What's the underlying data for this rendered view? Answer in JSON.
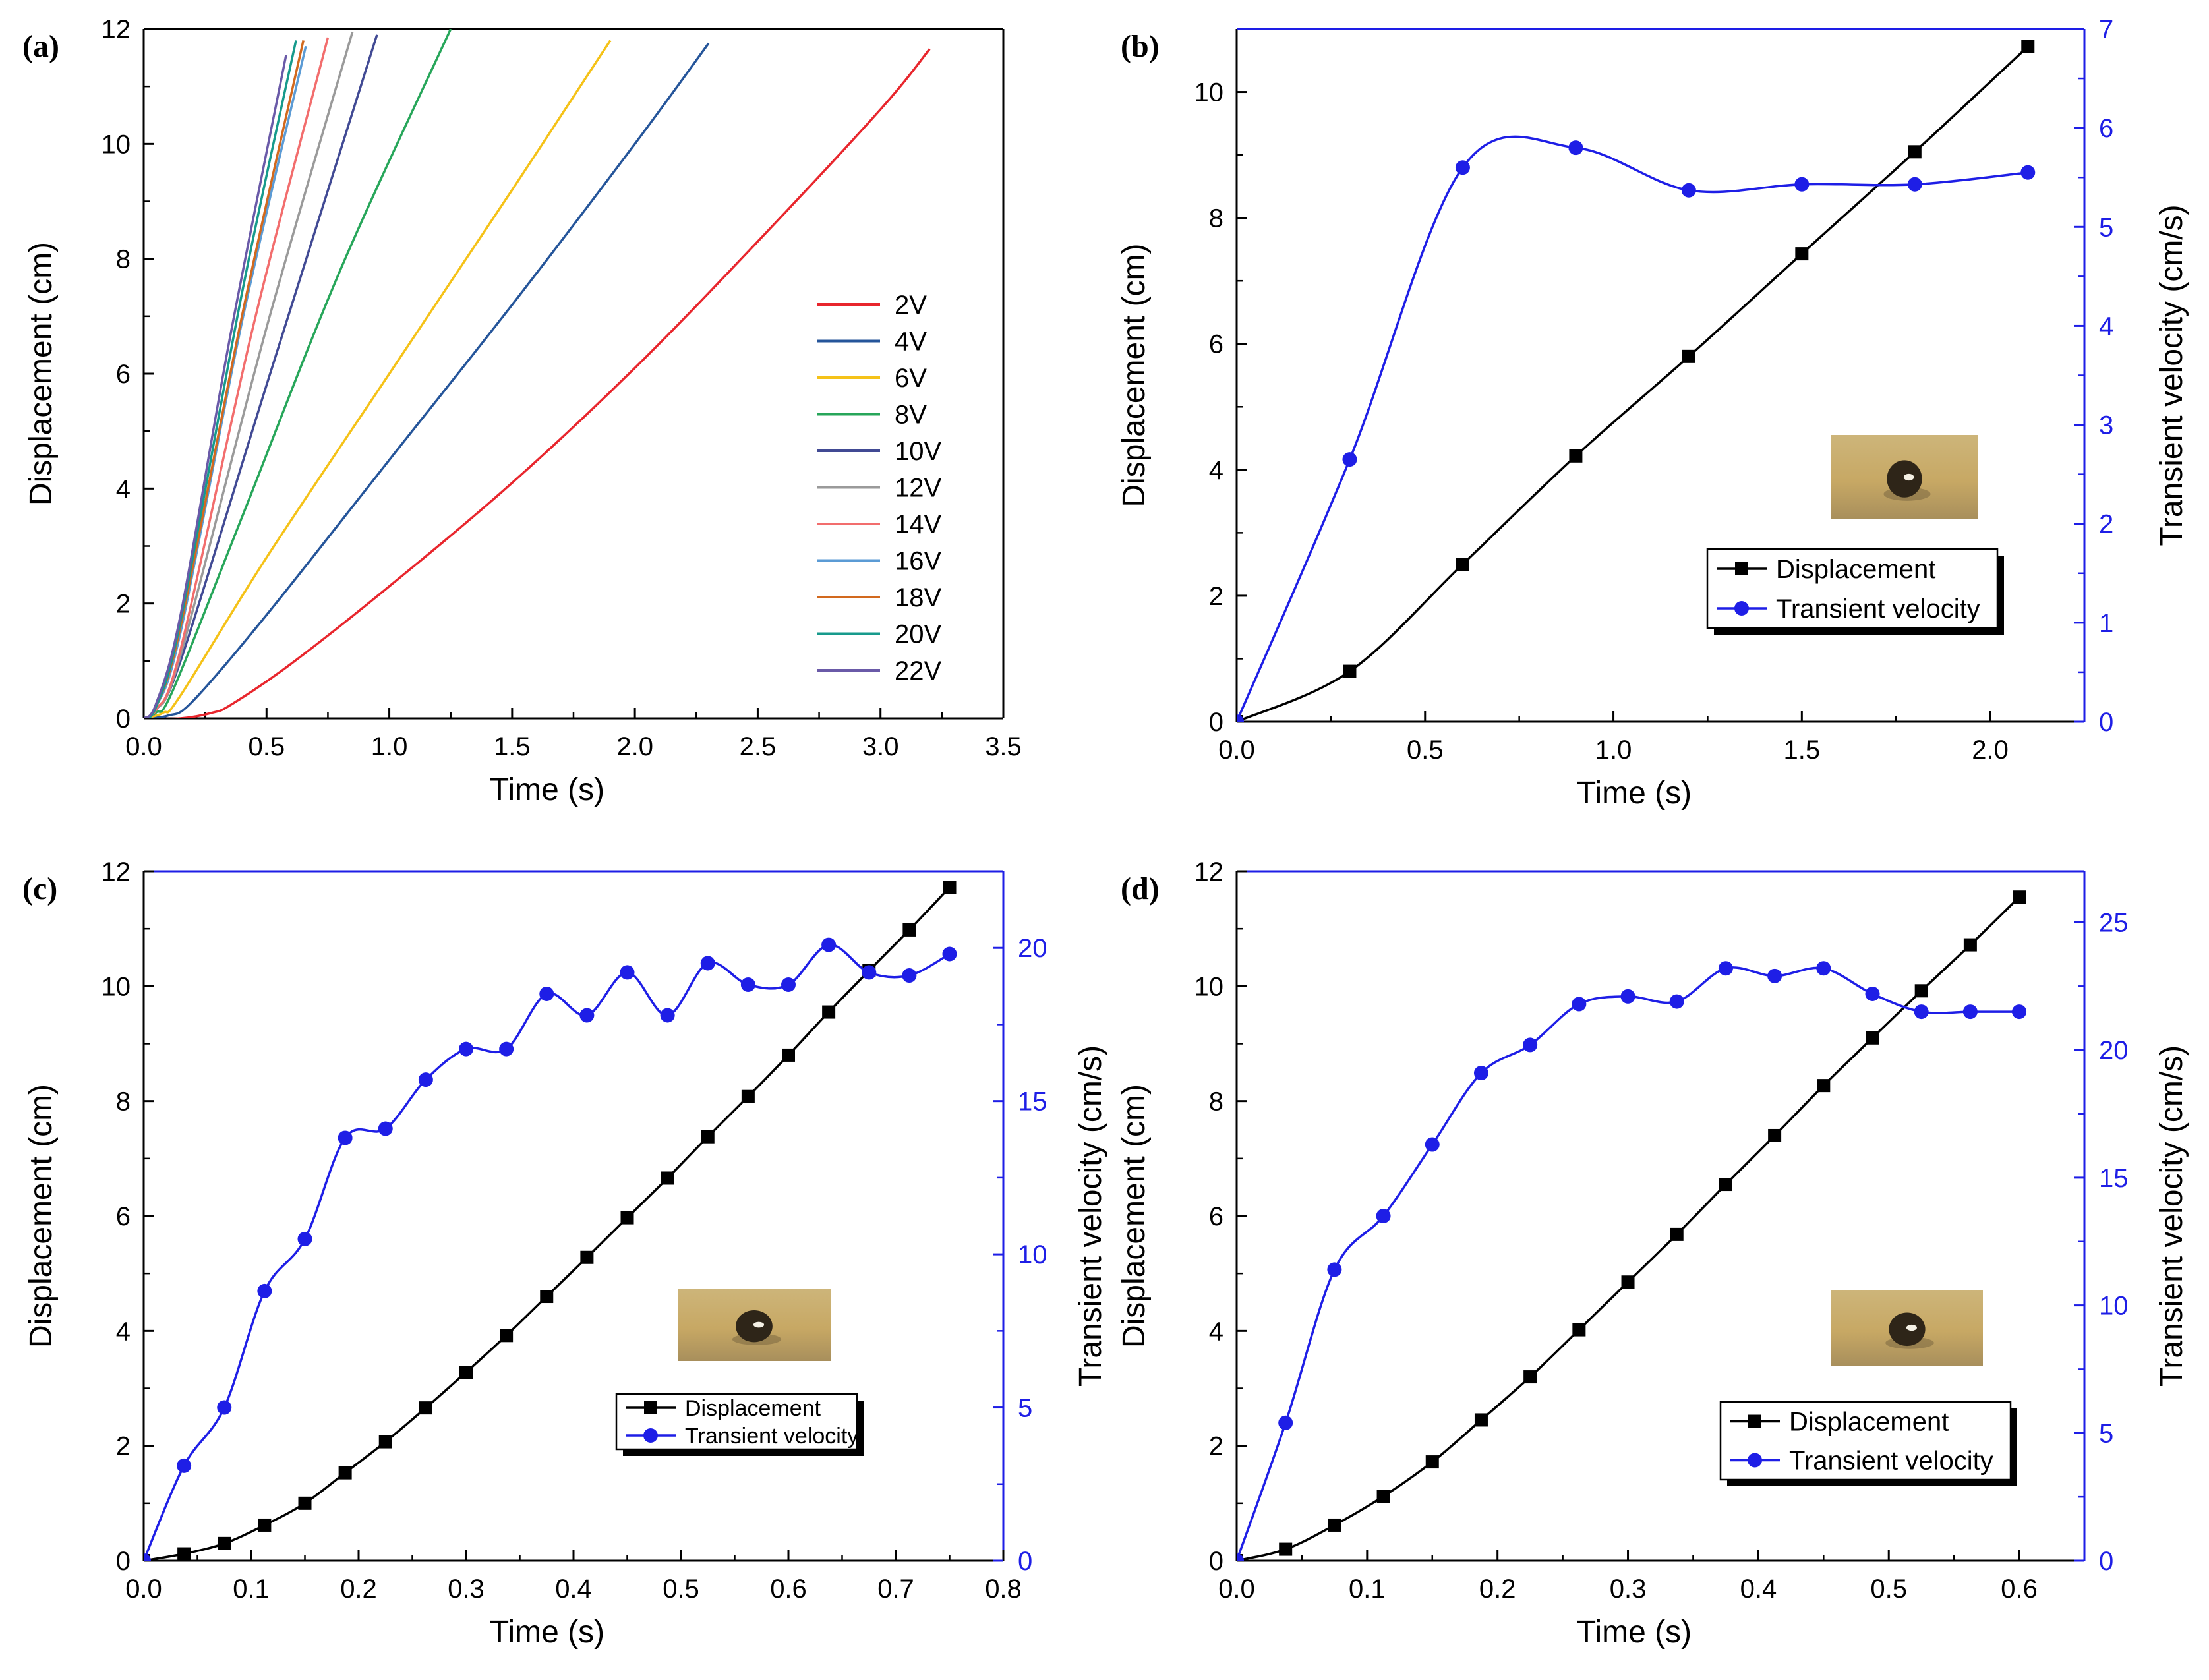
{
  "chart_data": [
    {
      "id": "a",
      "type": "line",
      "panel_label": "(a)",
      "title": "",
      "xlabel": "Time (s)",
      "ylabel": "Displacement (cm)",
      "xlim": [
        0,
        3.5
      ],
      "ylim": [
        0,
        12
      ],
      "xticks": [
        "0.0",
        "0.5",
        "1.0",
        "1.5",
        "2.0",
        "2.5",
        "3.0",
        "3.5"
      ],
      "yticks": [
        "0",
        "2",
        "4",
        "6",
        "8",
        "10",
        "12"
      ],
      "legend_position": "center-right",
      "series": [
        {
          "name": "2V",
          "color": "#e8262d",
          "x": [
            0,
            0.15,
            0.28,
            0.36,
            0.6,
            1.0,
            1.5,
            2.0,
            2.5,
            3.0,
            3.2
          ],
          "y": [
            0,
            0,
            0.1,
            0.25,
            0.95,
            2.3,
            4.1,
            6.1,
            8.3,
            10.6,
            11.65
          ]
        },
        {
          "name": "4V",
          "color": "#25559a",
          "x": [
            0,
            0.1,
            0.2,
            0.5,
            1.0,
            1.5,
            2.0,
            2.3
          ],
          "y": [
            0,
            0.05,
            0.3,
            1.8,
            4.5,
            7.2,
            10.0,
            11.75
          ]
        },
        {
          "name": "6V",
          "color": "#f5c218",
          "x": [
            0,
            0.08,
            0.15,
            0.5,
            1.0,
            1.5,
            1.9
          ],
          "y": [
            0,
            0.1,
            0.4,
            2.8,
            6.0,
            9.2,
            11.8
          ]
        },
        {
          "name": "8V",
          "color": "#27a65a",
          "x": [
            0,
            0.05,
            0.12,
            0.4,
            0.8,
            1.25
          ],
          "y": [
            0,
            0.1,
            0.5,
            3.5,
            7.8,
            12.0
          ]
        },
        {
          "name": "10V",
          "color": "#414a94",
          "x": [
            0,
            0.05,
            0.15,
            0.5,
            0.95
          ],
          "y": [
            0,
            0.15,
            1.0,
            5.8,
            11.9
          ]
        },
        {
          "name": "12V",
          "color": "#9a9a9a",
          "x": [
            0,
            0.05,
            0.15,
            0.5,
            0.85
          ],
          "y": [
            0,
            0.15,
            1.1,
            6.8,
            11.95
          ]
        },
        {
          "name": "14V",
          "color": "#f26d6d",
          "x": [
            0,
            0.05,
            0.15,
            0.45,
            0.75
          ],
          "y": [
            0,
            0.15,
            1.2,
            6.9,
            11.85
          ]
        },
        {
          "name": "16V",
          "color": "#5b9bd5",
          "x": [
            0,
            0.05,
            0.15,
            0.4,
            0.66
          ],
          "y": [
            0,
            0.2,
            1.5,
            6.9,
            11.7
          ]
        },
        {
          "name": "18V",
          "color": "#d2691e",
          "x": [
            0,
            0.05,
            0.15,
            0.4,
            0.65
          ],
          "y": [
            0,
            0.2,
            1.6,
            7.0,
            11.8
          ]
        },
        {
          "name": "20V",
          "color": "#179a8c",
          "x": [
            0,
            0.05,
            0.15,
            0.4,
            0.62
          ],
          "y": [
            0,
            0.2,
            1.7,
            7.4,
            11.8
          ]
        },
        {
          "name": "22V",
          "color": "#6a5aa8",
          "x": [
            0,
            0.05,
            0.15,
            0.35,
            0.58
          ],
          "y": [
            0,
            0.25,
            1.8,
            6.6,
            11.55
          ]
        }
      ]
    },
    {
      "id": "b",
      "type": "line",
      "panel_label": "(b)",
      "title": "",
      "xlabel": "Time (s)",
      "ylabel": "Displacement (cm)",
      "y2label": "Transient velocity (cm/s)",
      "xlim": [
        0,
        2.25
      ],
      "ylim": [
        0,
        11
      ],
      "y2lim": [
        0,
        7
      ],
      "xticks": [
        "0.0",
        "0.5",
        "1.0",
        "1.5",
        "2.0"
      ],
      "yticks": [
        "0",
        "2",
        "4",
        "6",
        "8",
        "10"
      ],
      "y2ticks": [
        "0",
        "1",
        "2",
        "3",
        "4",
        "5",
        "6",
        "7"
      ],
      "legend_position": "center-right",
      "inset": "droplet photo",
      "series": [
        {
          "name": "Displacement",
          "axis": "left",
          "color": "#000000",
          "marker": "square",
          "x": [
            0,
            0.3,
            0.6,
            0.9,
            1.2,
            1.5,
            1.8,
            2.1
          ],
          "y": [
            0,
            0.8,
            2.5,
            4.22,
            5.8,
            7.43,
            9.05,
            10.72
          ]
        },
        {
          "name": "Transient velocity",
          "axis": "right",
          "color": "#1e1ee6",
          "marker": "circle",
          "x": [
            0,
            0.3,
            0.6,
            0.9,
            1.2,
            1.5,
            1.8,
            2.1
          ],
          "y": [
            0,
            2.65,
            5.6,
            5.8,
            5.37,
            5.43,
            5.43,
            5.55
          ]
        }
      ]
    },
    {
      "id": "c",
      "type": "line",
      "panel_label": "(c)",
      "title": "",
      "xlabel": "Time (s)",
      "ylabel": "Displacement (cm)",
      "y2label": "Transient velocity (cm/s)",
      "xlim": [
        0,
        0.8
      ],
      "ylim": [
        0,
        12
      ],
      "y2lim": [
        0,
        22.5
      ],
      "xticks": [
        "0.0",
        "0.1",
        "0.2",
        "0.3",
        "0.4",
        "0.5",
        "0.6",
        "0.7",
        "0.8"
      ],
      "yticks": [
        "0",
        "2",
        "4",
        "6",
        "8",
        "10",
        "12"
      ],
      "y2ticks": [
        "0",
        "5",
        "10",
        "15",
        "20"
      ],
      "legend_position": "lower-right",
      "inset": "droplet photo",
      "series": [
        {
          "name": "Displacement",
          "axis": "left",
          "color": "#000000",
          "marker": "square",
          "x": [
            0,
            0.0375,
            0.075,
            0.1125,
            0.15,
            0.1875,
            0.225,
            0.2625,
            0.3,
            0.3375,
            0.375,
            0.4125,
            0.45,
            0.4875,
            0.525,
            0.5625,
            0.6,
            0.6375,
            0.675,
            0.7125,
            0.75
          ],
          "y": [
            0,
            0.12,
            0.3,
            0.62,
            1.0,
            1.53,
            2.07,
            2.66,
            3.28,
            3.92,
            4.6,
            5.28,
            5.97,
            6.66,
            7.38,
            8.08,
            8.8,
            9.55,
            10.27,
            10.98,
            11.72
          ]
        },
        {
          "name": "Transient velocity",
          "axis": "right",
          "color": "#1e1ee6",
          "marker": "circle",
          "x": [
            0,
            0.0375,
            0.075,
            0.1125,
            0.15,
            0.1875,
            0.225,
            0.2625,
            0.3,
            0.3375,
            0.375,
            0.4125,
            0.45,
            0.4875,
            0.525,
            0.5625,
            0.6,
            0.6375,
            0.675,
            0.7125,
            0.75
          ],
          "y": [
            0,
            3.1,
            5.0,
            8.8,
            10.5,
            13.8,
            14.1,
            15.7,
            16.7,
            16.7,
            18.5,
            17.8,
            19.2,
            17.8,
            19.5,
            18.8,
            18.8,
            20.1,
            19.2,
            19.1,
            19.8
          ]
        }
      ]
    },
    {
      "id": "d",
      "type": "line",
      "panel_label": "(d)",
      "title": "",
      "xlabel": "Time (s)",
      "ylabel": "Displacement (cm)",
      "y2label": "Transient velocity (cm/s)",
      "xlim": [
        0,
        0.65
      ],
      "ylim": [
        0,
        12
      ],
      "y2lim": [
        0,
        27
      ],
      "xticks": [
        "0.0",
        "0.1",
        "0.2",
        "0.3",
        "0.4",
        "0.5",
        "0.6"
      ],
      "yticks": [
        "0",
        "2",
        "4",
        "6",
        "8",
        "10",
        "12"
      ],
      "y2ticks": [
        "0",
        "5",
        "10",
        "15",
        "20",
        "25"
      ],
      "legend_position": "lower-right",
      "inset": "droplet photo",
      "series": [
        {
          "name": "Displacement",
          "axis": "left",
          "color": "#000000",
          "marker": "square",
          "x": [
            0,
            0.0375,
            0.075,
            0.1125,
            0.15,
            0.1875,
            0.225,
            0.2625,
            0.3,
            0.3375,
            0.375,
            0.4125,
            0.45,
            0.4875,
            0.525,
            0.5625,
            0.6
          ],
          "y": [
            0,
            0.2,
            0.62,
            1.12,
            1.72,
            2.45,
            3.2,
            4.02,
            4.85,
            5.68,
            6.55,
            7.4,
            8.27,
            9.1,
            9.92,
            10.72,
            11.55
          ]
        },
        {
          "name": "Transient velocity",
          "axis": "right",
          "color": "#1e1ee6",
          "marker": "circle",
          "x": [
            0,
            0.0375,
            0.075,
            0.1125,
            0.15,
            0.1875,
            0.225,
            0.2625,
            0.3,
            0.3375,
            0.375,
            0.4125,
            0.45,
            0.4875,
            0.525,
            0.5625,
            0.6
          ],
          "y": [
            0,
            5.4,
            11.4,
            13.5,
            16.3,
            19.1,
            20.2,
            21.8,
            22.1,
            21.9,
            23.2,
            22.9,
            23.2,
            22.2,
            21.5,
            21.5,
            21.5
          ]
        }
      ]
    }
  ]
}
